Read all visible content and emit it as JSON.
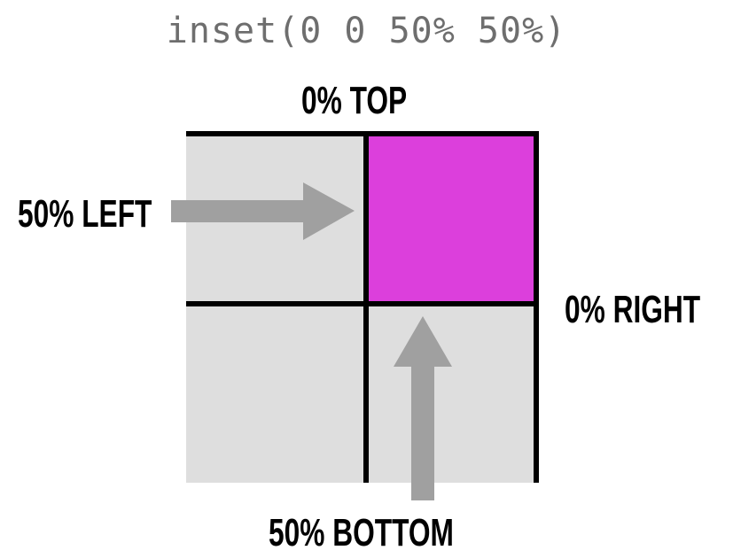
{
  "title": "inset(0 0 50% 50%)",
  "labels": {
    "top": "0% TOP",
    "left": "50% LEFT",
    "right": "0% RIGHT",
    "bottom": "50% BOTTOM"
  },
  "colors": {
    "background_box": "#dedede",
    "clipped_region": "#dc3fdc",
    "border": "#000000",
    "arrow": "#a0a0a0",
    "title_text": "#6e6e6e"
  }
}
